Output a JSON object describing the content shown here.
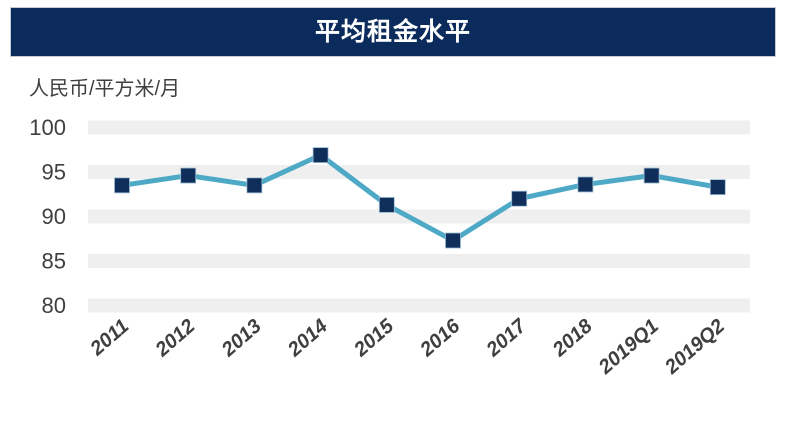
{
  "header": {
    "title": "平均租金水平"
  },
  "axis_unit_label": "人民币/平方米/月",
  "colors": {
    "header_bg": "#0a2b5c",
    "header_text": "#ffffff",
    "header_border": "#c3cad4",
    "line": "#4da9c6",
    "marker": "#0f2e5a",
    "marker_edge": "#9cbcd4",
    "grid_band": "#efefef",
    "axis_text": "#3f3f3f"
  },
  "chart_data": {
    "type": "line",
    "title": "平均租金水平",
    "ylabel": "人民币/平方米/月",
    "xlabel": "",
    "categories": [
      "2011",
      "2012",
      "2013",
      "2014",
      "2015",
      "2016",
      "2017",
      "2018",
      "2019Q1",
      "2019Q2"
    ],
    "series": [
      {
        "name": "平均租金水平",
        "values": [
          93.5,
          94.6,
          93.5,
          96.9,
          91.3,
          87.3,
          92.0,
          93.6,
          94.6,
          93.3
        ]
      }
    ],
    "ylim": [
      80,
      100
    ],
    "y_ticks": [
      100,
      95,
      90,
      85,
      80
    ],
    "grid": "horizontal-bands",
    "legend_position": "none",
    "marker_style": "square",
    "x_tick_rotation_deg": -41
  }
}
